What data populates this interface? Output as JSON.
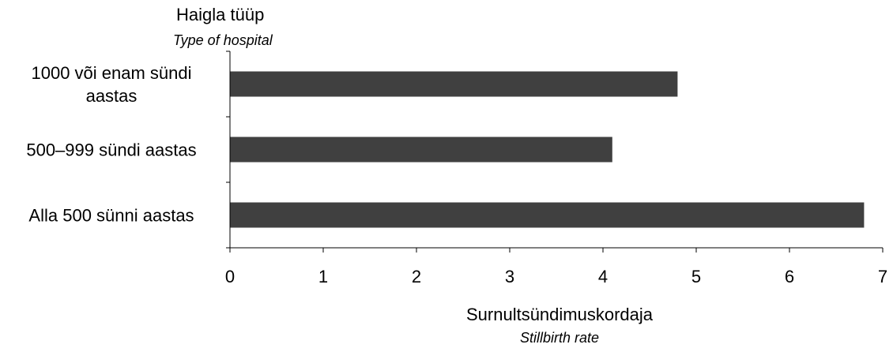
{
  "chart_data": {
    "type": "bar",
    "orientation": "horizontal",
    "categories": [
      [
        "1000 või enam sündi",
        "aastas"
      ],
      [
        "500–999 sündi aastas"
      ],
      [
        "Alla 500 sünni aastas"
      ]
    ],
    "values": [
      4.8,
      4.1,
      6.8
    ],
    "y_title": "Haigla tüüp",
    "y_title_en": "Type of hospital",
    "xlabel": "Surnultsündimuskordaja",
    "xlabel_en": "Stillbirth rate",
    "xlim": [
      0,
      7
    ],
    "xticks": [
      0,
      1,
      2,
      3,
      4,
      5,
      6,
      7
    ],
    "grid": false,
    "bar_color": "#404040",
    "axis_color": "#000000"
  }
}
